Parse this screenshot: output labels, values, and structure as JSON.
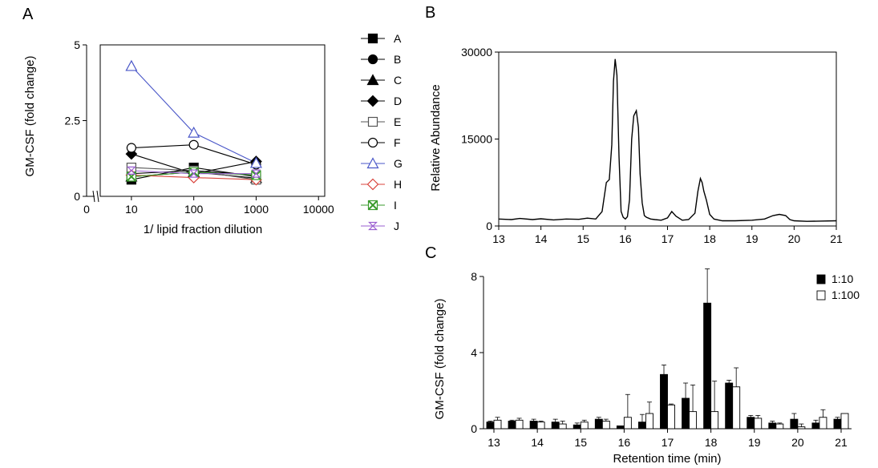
{
  "chart_data": [
    {
      "panel": "A",
      "type": "line",
      "ylabel": "GM-CSF (fold change)",
      "xlabel": "1/ lipid fraction dilution",
      "x_scale": "log",
      "x_ticks": [
        "0",
        "10",
        "100",
        "1000",
        "10000"
      ],
      "y_ticks": [
        "0",
        "2.5",
        "5"
      ],
      "ylim": [
        0,
        5
      ],
      "x": [
        10,
        100,
        1000
      ],
      "series": [
        {
          "name": "A",
          "marker": "square-filled",
          "color": "#000000",
          "values": [
            0.55,
            0.95,
            0.65
          ]
        },
        {
          "name": "B",
          "marker": "circle-filled",
          "color": "#000000",
          "values": [
            0.75,
            0.85,
            0.7
          ]
        },
        {
          "name": "C",
          "marker": "triangle-filled",
          "color": "#000000",
          "values": [
            0.65,
            0.8,
            0.6
          ]
        },
        {
          "name": "D",
          "marker": "diamond-filled",
          "color": "#000000",
          "values": [
            1.4,
            0.75,
            1.15
          ]
        },
        {
          "name": "E",
          "marker": "square-open",
          "color": "#555555",
          "values": [
            0.95,
            0.85,
            0.55
          ]
        },
        {
          "name": "F",
          "marker": "circle-open",
          "color": "#000000",
          "values": [
            1.6,
            1.7,
            1.05
          ]
        },
        {
          "name": "G",
          "marker": "triangle-open",
          "color": "#4a57c8",
          "values": [
            4.3,
            2.1,
            1.1
          ]
        },
        {
          "name": "H",
          "marker": "diamond-open",
          "color": "#d9433b",
          "values": [
            0.7,
            0.62,
            0.55
          ]
        },
        {
          "name": "I",
          "marker": "square-x",
          "color": "#3a9a2c",
          "values": [
            0.65,
            0.8,
            0.7
          ]
        },
        {
          "name": "J",
          "marker": "hourglass",
          "color": "#9a5fd0",
          "values": [
            0.85,
            0.75,
            0.75
          ]
        }
      ]
    },
    {
      "panel": "B",
      "type": "line",
      "ylabel": "Relative Abundance",
      "xlabel": "",
      "xlim": [
        13,
        21
      ],
      "ylim": [
        0,
        30000
      ],
      "x_ticks": [
        "13",
        "14",
        "15",
        "16",
        "17",
        "18",
        "19",
        "20",
        "21"
      ],
      "y_ticks": [
        "0",
        "15000",
        "30000"
      ],
      "x": [
        13.0,
        13.3,
        13.5,
        13.8,
        14.0,
        14.3,
        14.6,
        14.9,
        15.1,
        15.3,
        15.45,
        15.55,
        15.62,
        15.68,
        15.72,
        15.76,
        15.8,
        15.85,
        15.9,
        15.95,
        16.0,
        16.05,
        16.1,
        16.15,
        16.2,
        16.26,
        16.31,
        16.35,
        16.4,
        16.45,
        16.5,
        16.6,
        16.7,
        16.85,
        17.0,
        17.1,
        17.2,
        17.35,
        17.5,
        17.65,
        17.72,
        17.78,
        17.82,
        17.86,
        17.92,
        18.0,
        18.1,
        18.3,
        18.6,
        19.0,
        19.3,
        19.5,
        19.65,
        19.8,
        19.9,
        20.0,
        20.3,
        20.6,
        21.0
      ],
      "values": [
        1200,
        1100,
        1300,
        1100,
        1250,
        1050,
        1200,
        1150,
        1350,
        1200,
        2500,
        7500,
        8000,
        14000,
        25000,
        28800,
        26000,
        12000,
        2500,
        1500,
        1200,
        1600,
        4500,
        15000,
        19000,
        19900,
        17000,
        9000,
        4000,
        1800,
        1500,
        1200,
        1100,
        1000,
        1400,
        2500,
        1700,
        1000,
        1100,
        2200,
        6000,
        8200,
        7500,
        6000,
        4500,
        2000,
        1200,
        900,
        900,
        1000,
        1200,
        1800,
        2000,
        1800,
        1100,
        900,
        800,
        850,
        900
      ]
    },
    {
      "panel": "C",
      "type": "bar",
      "ylabel": "GM-CSF (fold change)",
      "xlabel": "Retention time (min)",
      "ylim": [
        0,
        8
      ],
      "y_ticks": [
        "0",
        "4",
        "8"
      ],
      "x_ticks": [
        "13",
        "14",
        "15",
        "16",
        "17",
        "18",
        "19",
        "20",
        "21"
      ],
      "series": [
        {
          "name": "1:10",
          "fill": "#000000",
          "x": [
            13.0,
            13.5,
            14.0,
            14.5,
            15.0,
            15.5,
            16.0,
            16.5,
            17.0,
            17.5,
            18.0,
            18.5,
            19.0,
            19.5,
            20.0,
            20.5,
            21.0
          ],
          "values": [
            0.35,
            0.4,
            0.4,
            0.35,
            0.2,
            0.5,
            0.15,
            0.35,
            2.85,
            1.6,
            6.6,
            2.4,
            0.6,
            0.3,
            0.5,
            0.3,
            0.5
          ],
          "errors": [
            0.05,
            0.05,
            0.1,
            0.15,
            0.1,
            0.1,
            0.0,
            0.4,
            0.5,
            0.8,
            1.8,
            0.15,
            0.1,
            0.1,
            0.3,
            0.15,
            0.1
          ]
        },
        {
          "name": "1:100",
          "fill": "#ffffff",
          "x": [
            13.0,
            13.5,
            14.0,
            14.5,
            15.0,
            15.5,
            16.0,
            16.5,
            17.0,
            17.5,
            18.0,
            18.5,
            19.0,
            19.5,
            20.0,
            20.5,
            21.0
          ],
          "values": [
            0.45,
            0.45,
            0.35,
            0.25,
            0.35,
            0.4,
            0.6,
            0.8,
            1.25,
            0.9,
            0.9,
            2.2,
            0.55,
            0.25,
            0.1,
            0.6,
            0.8
          ],
          "errors": [
            0.15,
            0.1,
            0.05,
            0.15,
            0.1,
            0.1,
            1.2,
            0.6,
            0.05,
            1.4,
            1.6,
            1.0,
            0.15,
            0.05,
            0.15,
            0.4,
            0.0
          ]
        }
      ]
    }
  ]
}
